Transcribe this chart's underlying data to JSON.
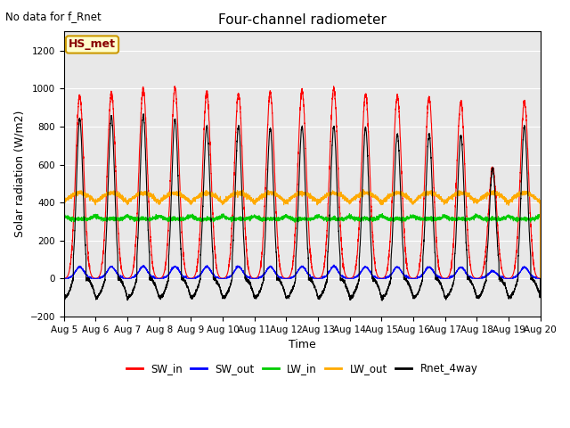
{
  "title": "Four-channel radiometer",
  "top_left_text": "No data for f_Rnet",
  "annotation_text": "HS_met",
  "xlabel": "Time",
  "ylabel": "Solar radiation (W/m2)",
  "ylim": [
    -200,
    1300
  ],
  "yticks": [
    -200,
    0,
    200,
    400,
    600,
    800,
    1000,
    1200
  ],
  "x_tick_days": [
    5,
    6,
    7,
    8,
    9,
    10,
    11,
    12,
    13,
    14,
    15,
    16,
    17,
    18,
    19,
    20
  ],
  "x_tick_labels": [
    "Aug 5",
    "Aug 6",
    "Aug 7",
    "Aug 8",
    "Aug 9",
    "Aug 10",
    "Aug 11",
    "Aug 12",
    "Aug 13",
    "Aug 14",
    "Aug 15",
    "Aug 16",
    "Aug 17",
    "Aug 18",
    "Aug 19",
    "Aug 20"
  ],
  "colors": {
    "SW_in": "#ff0000",
    "SW_out": "#0000ff",
    "LW_in": "#00cc00",
    "LW_out": "#ffaa00",
    "Rnet_4way": "#000000"
  },
  "bg_color": "#e8e8e8",
  "fig_bg_color": "#ffffff",
  "grid_color": "#ffffff",
  "annotation_bg": "#ffffcc",
  "annotation_border": "#cc9900",
  "sw_in_peaks": [
    960,
    980,
    1000,
    1000,
    980,
    970,
    980,
    990,
    1000,
    970,
    960,
    950,
    930,
    580,
    930
  ],
  "rnet_peaks": [
    840,
    850,
    860,
    840,
    800,
    800,
    790,
    800,
    800,
    790,
    760,
    760,
    750,
    580,
    800
  ]
}
